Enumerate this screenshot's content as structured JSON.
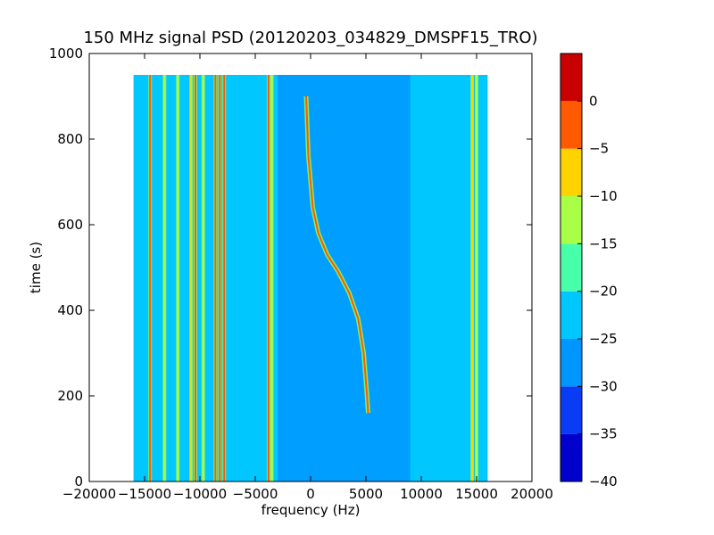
{
  "chart_data": {
    "type": "heatmap",
    "title": "150 MHz signal PSD (20120203_034829_DMSPF15_TRO)",
    "xlabel": "frequency (Hz)",
    "ylabel": "time (s)",
    "xlim": [
      -20000,
      20000
    ],
    "ylim": [
      0,
      1000
    ],
    "x_ticks": [
      -20000,
      -15000,
      -10000,
      -5000,
      0,
      5000,
      10000,
      15000,
      20000
    ],
    "y_ticks": [
      0,
      200,
      400,
      600,
      800,
      1000
    ],
    "data_extent": {
      "x": [
        -16000,
        16000
      ],
      "y": [
        0,
        950
      ]
    },
    "background_level": [
      -25,
      -20
    ],
    "colorbar": {
      "levels": [
        -40,
        -35,
        -30,
        -25,
        -20,
        -15,
        -10,
        -5,
        0
      ],
      "tick_labels": [
        "-40",
        "-35",
        "-30",
        "-25",
        "-20",
        "-15",
        "-10",
        "-5",
        "0"
      ],
      "colors": [
        "#0000cd",
        "#0a3cf5",
        "#0096ff",
        "#00c8ff",
        "#46ffa8",
        "#a8ff46",
        "#ffd200",
        "#ff5a00",
        "#c80000"
      ]
    },
    "vertical_signals": [
      {
        "x": -14500,
        "level": -5
      },
      {
        "x": -13200,
        "level": -12
      },
      {
        "x": -12000,
        "level": -15
      },
      {
        "x": -10800,
        "level": -10
      },
      {
        "x": -10400,
        "level": -3
      },
      {
        "x": -9700,
        "level": -12
      },
      {
        "x": -8600,
        "level": -5
      },
      {
        "x": -8200,
        "level": -2
      },
      {
        "x": -7800,
        "level": -5
      },
      {
        "x": -3800,
        "level": -3
      },
      {
        "x": -3500,
        "level": -15
      },
      {
        "x": 14600,
        "level": -8
      },
      {
        "x": 15000,
        "level": -15
      }
    ],
    "doppler_track": {
      "level": -3,
      "points": [
        {
          "x": -400,
          "y": 900
        },
        {
          "x": -200,
          "y": 760
        },
        {
          "x": 200,
          "y": 640
        },
        {
          "x": 700,
          "y": 580
        },
        {
          "x": 1500,
          "y": 530
        },
        {
          "x": 2500,
          "y": 490
        },
        {
          "x": 3500,
          "y": 440
        },
        {
          "x": 4300,
          "y": 380
        },
        {
          "x": 4800,
          "y": 300
        },
        {
          "x": 5100,
          "y": 200
        },
        {
          "x": 5200,
          "y": 160
        }
      ]
    }
  }
}
